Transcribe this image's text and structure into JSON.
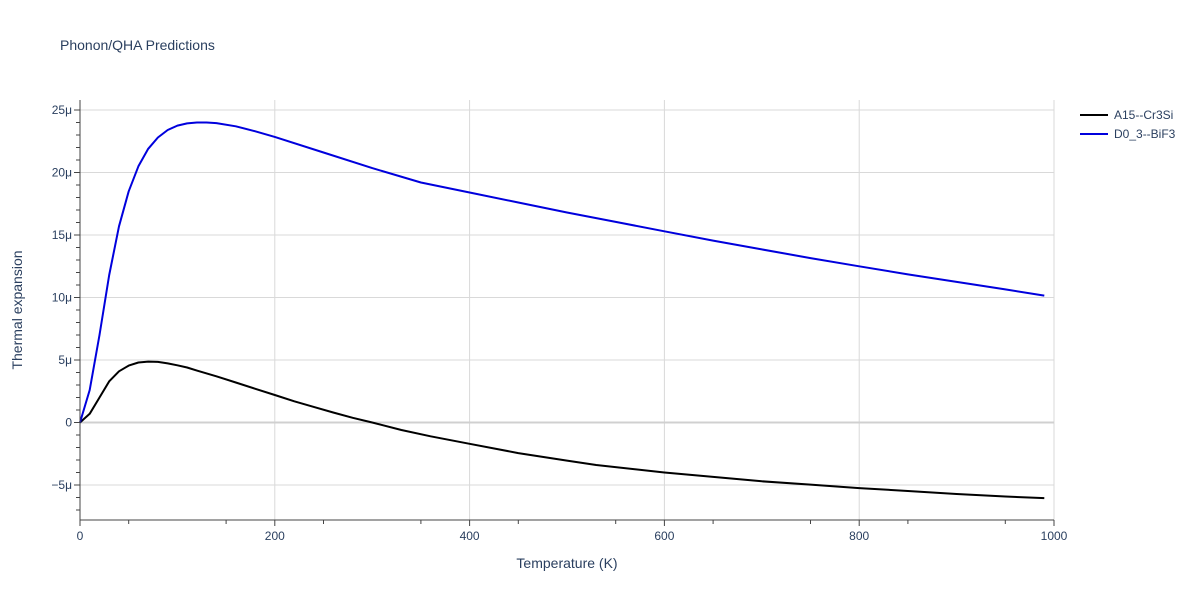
{
  "chart_data": {
    "type": "line",
    "title": "Phonon/QHA Predictions",
    "xlabel": "Temperature (K)",
    "ylabel": "Thermal expansion",
    "xlim": [
      0,
      1000
    ],
    "ylim": [
      -7.8,
      25.8
    ],
    "x_ticks": [
      0,
      200,
      400,
      600,
      800,
      1000
    ],
    "x_tick_labels": [
      "0",
      "200",
      "400",
      "600",
      "800",
      "1000"
    ],
    "y_ticks": [
      -5,
      0,
      5,
      10,
      15,
      20,
      25
    ],
    "y_tick_labels": [
      "−5μ",
      "0",
      "5μ",
      "10μ",
      "15μ",
      "20μ",
      "25μ"
    ],
    "grid": true,
    "legend_position": "top-right",
    "series": [
      {
        "name": "A15--Cr3Si",
        "color": "#000000",
        "x": [
          0,
          10,
          20,
          30,
          40,
          50,
          60,
          70,
          80,
          90,
          100,
          110,
          120,
          140,
          160,
          180,
          200,
          220,
          240,
          260,
          280,
          300,
          330,
          360,
          400,
          450,
          500,
          530,
          600,
          650,
          700,
          750,
          800,
          850,
          900,
          950,
          990
        ],
        "y": [
          0,
          0.7,
          2.0,
          3.3,
          4.1,
          4.55,
          4.8,
          4.87,
          4.85,
          4.73,
          4.58,
          4.4,
          4.15,
          3.7,
          3.2,
          2.7,
          2.2,
          1.7,
          1.25,
          0.8,
          0.38,
          0,
          -0.6,
          -1.1,
          -1.7,
          -2.45,
          -3.05,
          -3.4,
          -4.0,
          -4.35,
          -4.7,
          -4.97,
          -5.25,
          -5.48,
          -5.72,
          -5.92,
          -6.05
        ]
      },
      {
        "name": "D0_3--BiF3",
        "color": "#0000dd",
        "x": [
          0,
          10,
          20,
          30,
          40,
          50,
          60,
          70,
          80,
          90,
          100,
          110,
          120,
          130,
          140,
          160,
          180,
          200,
          250,
          300,
          350,
          400,
          450,
          500,
          550,
          600,
          650,
          700,
          750,
          800,
          850,
          900,
          950,
          990
        ],
        "y": [
          0,
          2.6,
          7.0,
          11.8,
          15.7,
          18.5,
          20.5,
          21.9,
          22.8,
          23.4,
          23.75,
          23.93,
          24.0,
          24.0,
          23.95,
          23.7,
          23.3,
          22.85,
          21.6,
          20.35,
          19.2,
          18.4,
          17.6,
          16.8,
          16.05,
          15.3,
          14.55,
          13.85,
          13.15,
          12.5,
          11.85,
          11.25,
          10.65,
          10.15
        ]
      }
    ]
  }
}
